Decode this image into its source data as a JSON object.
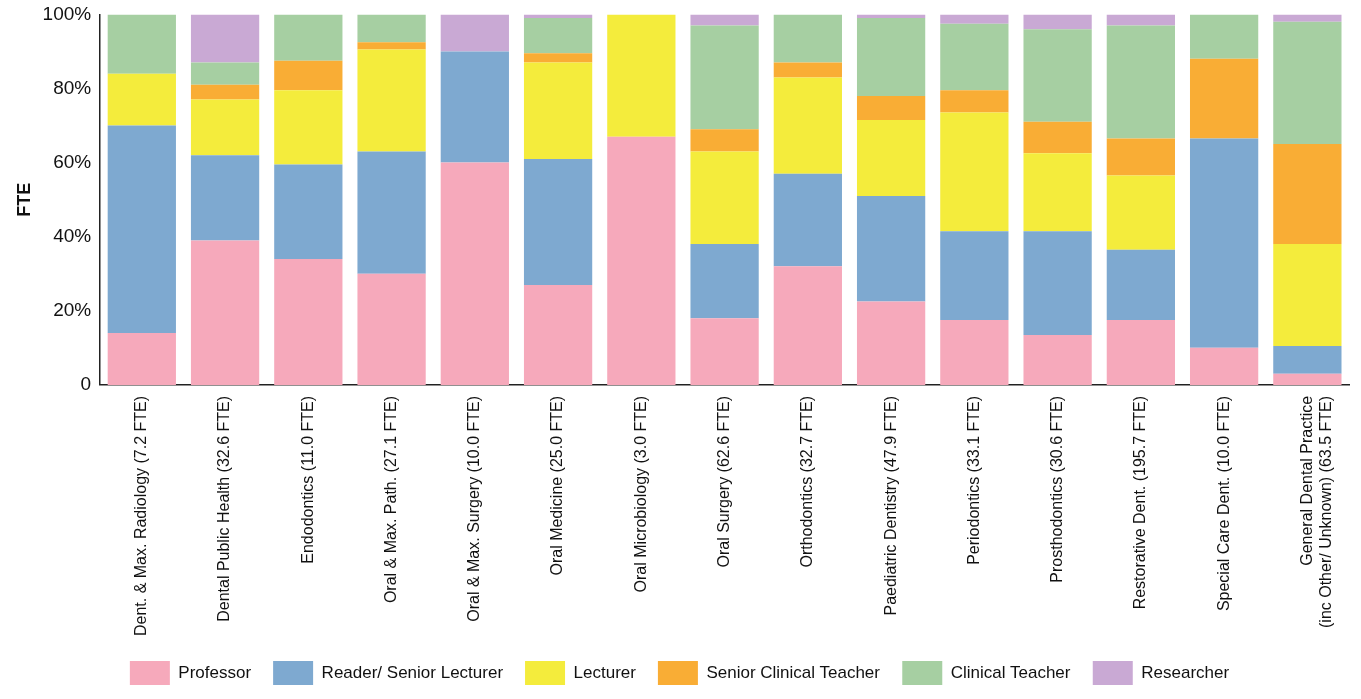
{
  "chart_data": {
    "type": "bar",
    "stacked": true,
    "ylabel": "FTE",
    "categories": [
      "Dent. & Max. Radiology (7.2 FTE)",
      "Dental Public Health (32.6 FTE)",
      "Endodontics (11.0 FTE)",
      "Oral & Max. Path. (27.1 FTE)",
      "Oral & Max. Surgery (10.0 FTE)",
      "Oral Medicine (25.0 FTE)",
      "Oral Microbiology (3.0 FTE)",
      "Oral Surgery (62.6 FTE)",
      "Orthodontics (32.7 FTE)",
      "Paediatric Dentistry (47.9 FTE)",
      "Periodontics (33.1 FTE)",
      "Prosthodontics (30.6 FTE)",
      "Restorative Dent. (195.7 FTE)",
      "Special Care Dent. (10.0 FTE)",
      "General Dental Practice\n(inc Other/ Unknown) (63.5 FTE)"
    ],
    "series": [
      {
        "name": "Professor",
        "color": "#f6a9bb",
        "values": [
          14,
          39,
          34,
          30,
          60,
          27,
          67,
          18,
          32,
          22.5,
          17.5,
          13.5,
          17.5,
          10,
          3
        ]
      },
      {
        "name": "Reader/ Senior Lecturer",
        "color": "#7ea9d0",
        "values": [
          56,
          23,
          25.5,
          33,
          30,
          34,
          0,
          20,
          25,
          28.5,
          24,
          28,
          19,
          56.5,
          7.5
        ]
      },
      {
        "name": "Lecturer",
        "color": "#f4ec3c",
        "values": [
          14,
          15,
          20,
          27.5,
          0,
          26,
          33,
          25,
          26,
          20.5,
          32,
          21,
          20,
          0,
          27.5
        ]
      },
      {
        "name": "Senior Clinical Teacher",
        "color": "#f9ad35",
        "values": [
          0,
          4,
          8,
          2,
          0,
          2.5,
          0,
          6,
          4,
          6.5,
          6,
          8.5,
          10,
          21.5,
          27
        ]
      },
      {
        "name": "Clinical Teacher",
        "color": "#a6cfa2",
        "values": [
          16,
          6,
          12.5,
          7.5,
          0,
          9.5,
          0,
          28,
          13,
          21,
          18,
          25,
          30.5,
          12,
          33
        ]
      },
      {
        "name": "Researcher",
        "color": "#c9a9d4",
        "values": [
          0,
          13,
          0,
          0,
          10,
          1,
          0,
          3,
          0,
          1,
          2.5,
          4,
          3,
          0,
          2
        ]
      }
    ],
    "ylim": [
      0,
      100
    ],
    "yticks": [
      0,
      {
        "value": 20,
        "label": "20%"
      },
      {
        "value": 40,
        "label": "40%"
      },
      {
        "value": 60,
        "label": "60%"
      },
      {
        "value": 80,
        "label": "80%"
      },
      {
        "value": 100,
        "label": "100%"
      }
    ],
    "grid": false,
    "legend": "bottom"
  }
}
